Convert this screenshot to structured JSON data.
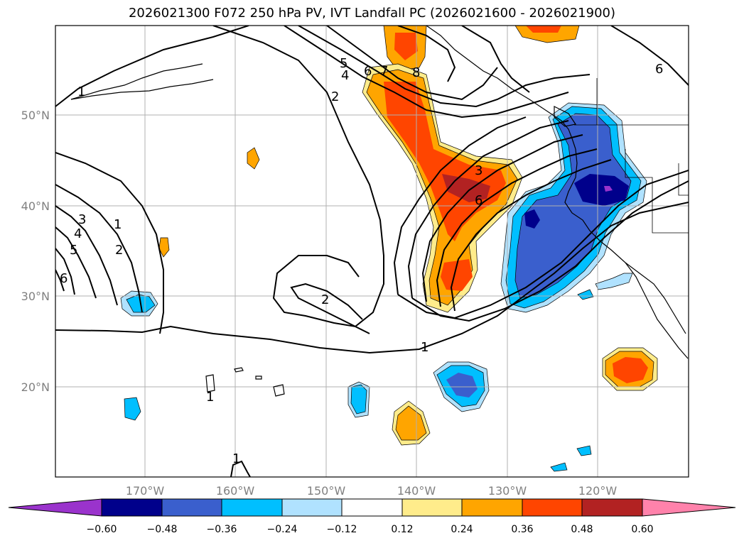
{
  "title": "2026021300 F072 250 hPa PV, IVT Landfall PC (2026021600 - 2026021900)",
  "map": {
    "lat_ticks": [
      "50°N",
      "40°N",
      "30°N",
      "20°N"
    ],
    "lon_ticks": [
      "170°W",
      "160°W",
      "150°W",
      "140°W",
      "130°W",
      "120°W"
    ],
    "grid": true
  },
  "colorbar": {
    "labels": [
      "−0.60",
      "−0.48",
      "−0.36",
      "−0.24",
      "−0.12",
      "0.12",
      "0.24",
      "0.36",
      "0.48",
      "0.60"
    ],
    "colors": [
      "#9a33cc",
      "#00008b",
      "#3a5fcd",
      "#00bfff",
      "#b0e2ff",
      "#ffffff",
      "#ffec8b",
      "#ffa500",
      "#ff4500",
      "#b22222",
      "#ff82ab"
    ]
  },
  "contour_labels": [
    "1",
    "2",
    "3",
    "4",
    "5",
    "6",
    "7",
    "8"
  ],
  "colors": {
    "frame": "#000000",
    "grid": "#b0b0b0",
    "ticks": "#808080"
  }
}
